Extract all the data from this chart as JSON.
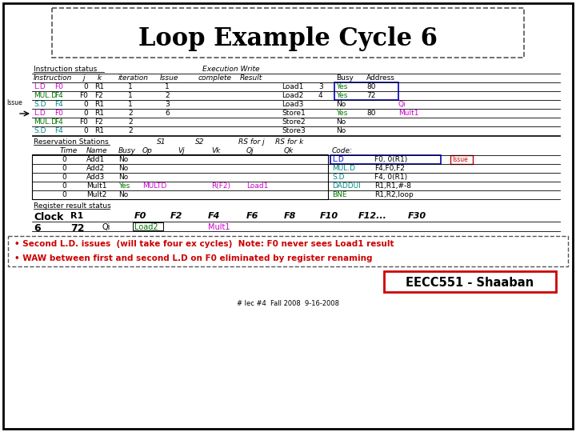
{
  "title": "Loop Example Cycle 6",
  "colors": {
    "magenta": "#cc00cc",
    "green": "#007700",
    "cyan": "#008888",
    "red": "#cc0000",
    "black": "#000000",
    "blue": "#0000cc",
    "issue_box": "#cc0000",
    "highlight_box": "#0000bb"
  },
  "instr_rows": [
    {
      "instr": "L.D",
      "reg": "F0",
      "j": "0",
      "k": "R1",
      "iter": "1",
      "issue": "1",
      "fu": "Load1",
      "fu_num": "3",
      "busy": "Yes",
      "addr": "80",
      "addr2": ""
    },
    {
      "instr": "MUL.D",
      "reg": "F4",
      "j": "F0",
      "k": "F2",
      "iter": "1",
      "issue": "2",
      "fu": "Load2",
      "fu_num": "4",
      "busy": "Yes",
      "addr": "72",
      "addr2": ""
    },
    {
      "instr": "S.D",
      "reg": "F4",
      "j": "0",
      "k": "R1",
      "iter": "1",
      "issue": "3",
      "fu": "Load3",
      "fu_num": "",
      "busy": "No",
      "addr": "",
      "addr2": "Qi"
    },
    {
      "instr": "L.D",
      "reg": "F0",
      "j": "0",
      "k": "R1",
      "iter": "2",
      "issue": "6",
      "fu": "Store1",
      "fu_num": "",
      "busy": "Yes",
      "addr": "80",
      "addr2": "Mult1"
    },
    {
      "instr": "MUL.D",
      "reg": "F4",
      "j": "F0",
      "k": "F2",
      "iter": "2",
      "issue": "",
      "fu": "Store2",
      "fu_num": "",
      "busy": "No",
      "addr": "",
      "addr2": ""
    },
    {
      "instr": "S.D",
      "reg": "F4",
      "j": "0",
      "k": "R1",
      "iter": "2",
      "issue": "",
      "fu": "Store3",
      "fu_num": "",
      "busy": "No",
      "addr": "",
      "addr2": ""
    }
  ],
  "instr_colors": [
    "magenta",
    "green",
    "cyan",
    "magenta",
    "green",
    "cyan"
  ],
  "rs_rows": [
    {
      "time": "0",
      "name": "Add1",
      "busy": "No",
      "op": "",
      "vj": "",
      "vk": "",
      "qj": "",
      "qk": "",
      "code1": "L.D",
      "code2": "F0, 0(R1)"
    },
    {
      "time": "0",
      "name": "Add2",
      "busy": "No",
      "op": "",
      "vj": "",
      "vk": "",
      "qj": "",
      "qk": "",
      "code1": "MUL.D",
      "code2": "F4,F0,F2"
    },
    {
      "time": "0",
      "name": "Add3",
      "busy": "No",
      "op": "",
      "vj": "",
      "vk": "",
      "qj": "",
      "qk": "",
      "code1": "S.D",
      "code2": "F4, 0(R1)"
    },
    {
      "time": "0",
      "name": "Mult1",
      "busy": "Yes",
      "op": "MULTD",
      "vj": "",
      "vk": "R(F2)",
      "qj": "Load1",
      "qk": "",
      "code1": "DADDUI",
      "code2": "R1,R1,#-8"
    },
    {
      "time": "0",
      "name": "Mult2",
      "busy": "No",
      "op": "",
      "vj": "",
      "vk": "",
      "qj": "",
      "qk": "",
      "code1": "BNE",
      "code2": "R1,R2,loop"
    }
  ],
  "rs_code_colors": [
    "blue",
    "cyan",
    "cyan",
    "cyan",
    "green"
  ],
  "reg_row": [
    "6",
    "72",
    "Qi",
    "Load2",
    "",
    "Mult1",
    "",
    "",
    "",
    "",
    ""
  ],
  "notes": [
    "• Second L.D. issues  (will take four ex cycles)  Note: F0 never sees Load1 result",
    "• WAW between first and second L.D on F0 eliminated by register renaming"
  ],
  "footer": "# lec #4  Fall 2008  9-16-2008"
}
